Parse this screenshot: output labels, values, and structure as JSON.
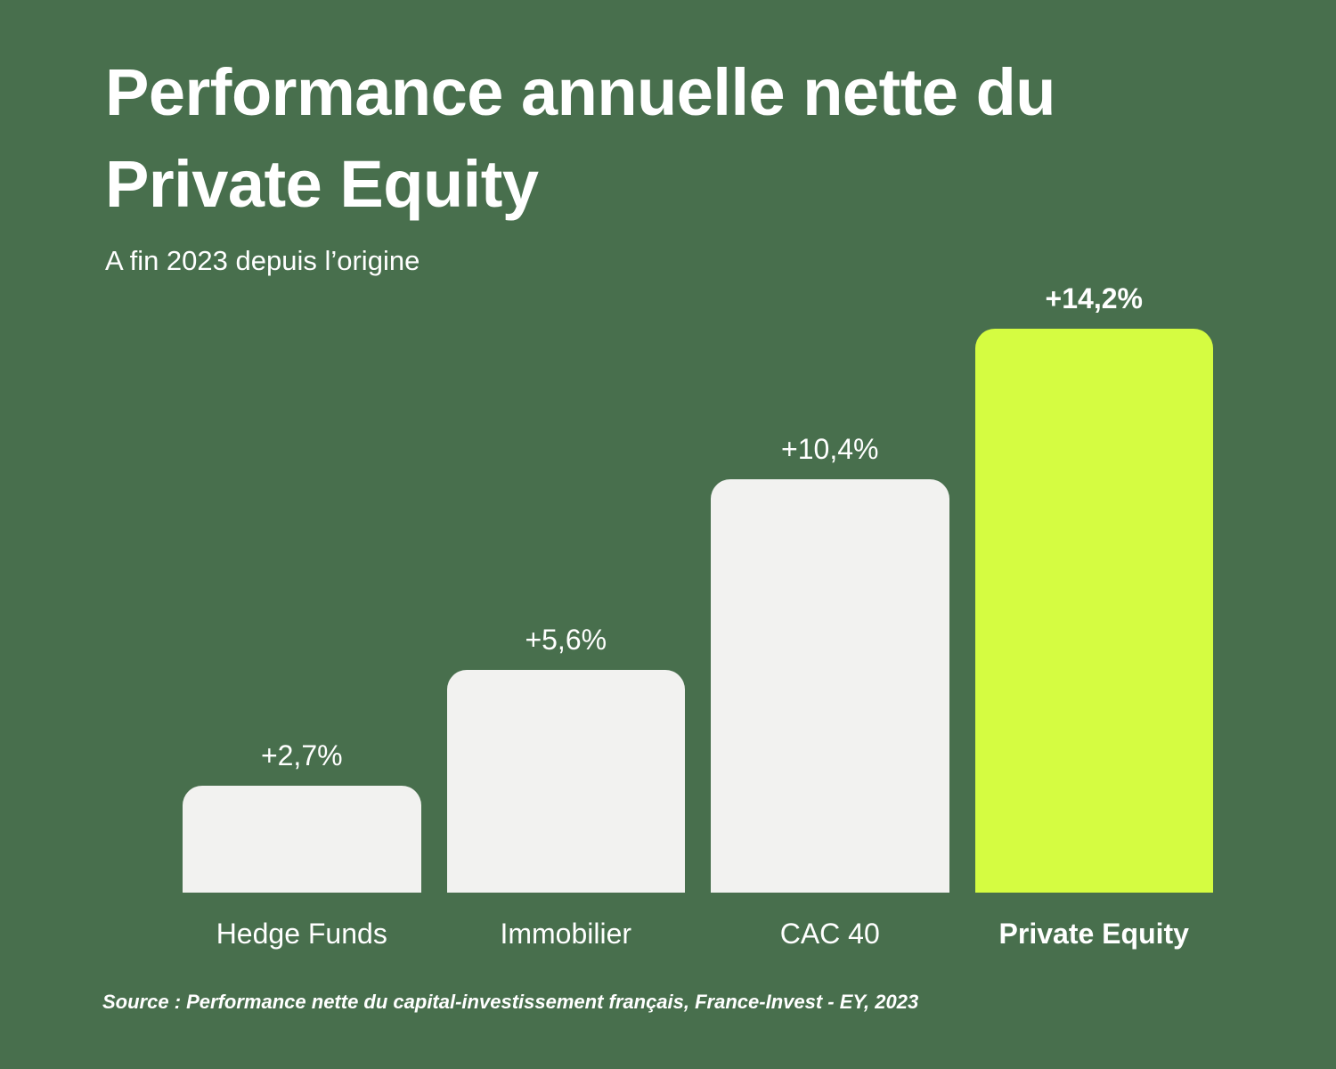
{
  "colors": {
    "background": "#486F4D",
    "bar": "#F2F2F0",
    "accent": "#D5FC41",
    "text": "#FFFFFF"
  },
  "header": {
    "title_line1": "Performance annuelle nette du",
    "title_line2": "Private Equity",
    "subtitle": "A fin 2023 depuis l’origine"
  },
  "footer": {
    "source": "Source : Performance nette du capital-investissement français, France-Invest - EY, 2023"
  },
  "chart_data": {
    "type": "bar",
    "title": "Performance annuelle nette du Private Equity",
    "subtitle": "A fin 2023 depuis l’origine",
    "categories": [
      "Hedge Funds",
      "Immobilier",
      "CAC 40",
      "Private Equity"
    ],
    "values": [
      2.7,
      5.6,
      10.4,
      14.2
    ],
    "value_labels": [
      "+2,7%",
      "+5,6%",
      "+10,4%",
      "+14,2%"
    ],
    "highlight_index": 3,
    "highlight_category": "Private Equity",
    "xlabel": "",
    "ylabel": "",
    "ylim": [
      0,
      14.2
    ],
    "grid": false,
    "legend": false,
    "axis_ticks_visible": false,
    "orientation": "vertical",
    "unit": "%"
  }
}
